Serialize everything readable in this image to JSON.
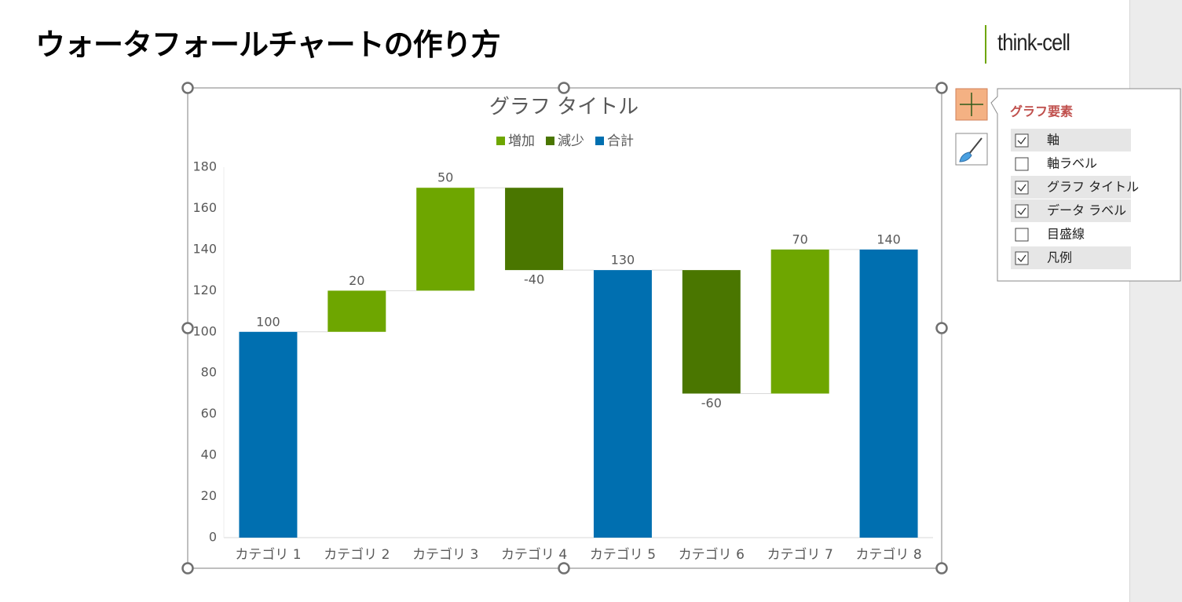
{
  "slide": {
    "title": "ウォータフォールチャートの作り方",
    "logo": "think-cell"
  },
  "chart_data": {
    "type": "waterfall",
    "title": "グラフ タイトル",
    "categories": [
      "カテゴリ 1",
      "カテゴリ 2",
      "カテゴリ 3",
      "カテゴリ 4",
      "カテゴリ 5",
      "カテゴリ 6",
      "カテゴリ 7",
      "カテゴリ 8"
    ],
    "series": [
      {
        "name": "増加",
        "color": "#6ea600",
        "values": [
          null,
          20,
          50,
          null,
          null,
          null,
          70,
          null
        ]
      },
      {
        "name": "減少",
        "color": "#4a7600",
        "values": [
          null,
          null,
          null,
          -40,
          null,
          -60,
          null,
          null
        ]
      },
      {
        "name": "合計",
        "color": "#006fb0",
        "is_total": true,
        "values": [
          100,
          null,
          null,
          null,
          130,
          null,
          null,
          140
        ]
      }
    ],
    "ylim": [
      0,
      180
    ],
    "yticks": [
      0,
      20,
      40,
      60,
      80,
      100,
      120,
      140,
      160,
      180
    ],
    "grid": false,
    "legend": "top"
  },
  "panel": {
    "title": "グラフ要素",
    "items": [
      {
        "label": "軸",
        "checked": true
      },
      {
        "label": "軸ラベル",
        "checked": false
      },
      {
        "label": "グラフ タイトル",
        "checked": true
      },
      {
        "label": "データ ラベル",
        "checked": true
      },
      {
        "label": "目盛線",
        "checked": false
      },
      {
        "label": "凡例",
        "checked": true
      }
    ]
  }
}
